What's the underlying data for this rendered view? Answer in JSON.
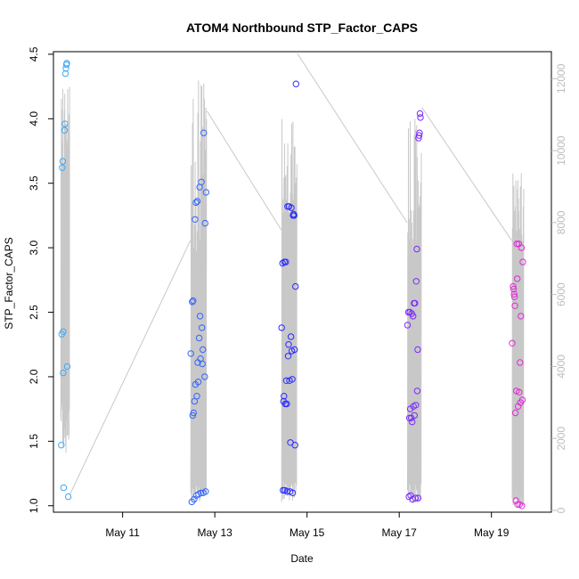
{
  "chart_data": {
    "type": "scatter",
    "title": "ATOM4 Northbound STP_Factor_CAPS",
    "xlabel": "Date",
    "ylabel": "STP_Factor_CAPS",
    "x_ticks": [
      "May 11",
      "May 13",
      "May 15",
      "May 17",
      "May 19"
    ],
    "x_tick_days": [
      11,
      13,
      15,
      17,
      19
    ],
    "xlim_days": [
      9.5,
      20.3
    ],
    "ylim": [
      0.95,
      4.52
    ],
    "y_ticks": [
      1.0,
      1.5,
      2.0,
      2.5,
      3.0,
      3.5,
      4.0,
      4.5
    ],
    "y_tick_labels": [
      "1.0",
      "1.5",
      "2.0",
      "2.5",
      "3.0",
      "3.5",
      "4.0",
      "4.5"
    ],
    "y2lim": [
      -50,
      12750
    ],
    "y2_ticks": [
      0,
      2000,
      4000,
      6000,
      8000,
      10000,
      12000
    ],
    "y2_tick_labels": [
      "0",
      "2000",
      "4000",
      "6000",
      "8000",
      "10000",
      "12000"
    ],
    "colors": {
      "axis": "#000000",
      "secondary_axis": "#bdbdbd",
      "secondary_series": "#c8c8c8",
      "point_colors_by_group": [
        "#3fa9f5",
        "#3366ff",
        "#2b2bff",
        "#7a2bff",
        "#e02bd6"
      ]
    },
    "series": [
      {
        "axis": "left",
        "style": "points",
        "points": [
          {
            "x": 9.67,
            "y": 1.47,
            "g": 0
          },
          {
            "x": 9.68,
            "y": 2.33,
            "g": 0
          },
          {
            "x": 9.69,
            "y": 3.62,
            "g": 0
          },
          {
            "x": 9.7,
            "y": 3.67,
            "g": 0
          },
          {
            "x": 9.71,
            "y": 2.35,
            "g": 0
          },
          {
            "x": 9.71,
            "y": 2.03,
            "g": 0
          },
          {
            "x": 9.72,
            "y": 1.14,
            "g": 0
          },
          {
            "x": 9.74,
            "y": 3.91,
            "g": 0
          },
          {
            "x": 9.75,
            "y": 3.96,
            "g": 0
          },
          {
            "x": 9.76,
            "y": 4.35,
            "g": 0
          },
          {
            "x": 9.77,
            "y": 4.39,
            "g": 0
          },
          {
            "x": 9.78,
            "y": 4.42,
            "g": 0
          },
          {
            "x": 9.79,
            "y": 4.43,
            "g": 0
          },
          {
            "x": 9.8,
            "y": 2.08,
            "g": 0
          },
          {
            "x": 9.82,
            "y": 1.07,
            "g": 0
          },
          {
            "x": 12.48,
            "y": 2.18,
            "g": 1
          },
          {
            "x": 12.5,
            "y": 1.03,
            "g": 1
          },
          {
            "x": 12.51,
            "y": 2.58,
            "g": 1
          },
          {
            "x": 12.52,
            "y": 1.7,
            "g": 1
          },
          {
            "x": 12.53,
            "y": 2.59,
            "g": 1
          },
          {
            "x": 12.54,
            "y": 1.72,
            "g": 1
          },
          {
            "x": 12.55,
            "y": 1.05,
            "g": 1
          },
          {
            "x": 12.56,
            "y": 1.81,
            "g": 1
          },
          {
            "x": 12.57,
            "y": 3.22,
            "g": 1
          },
          {
            "x": 12.58,
            "y": 1.94,
            "g": 1
          },
          {
            "x": 12.59,
            "y": 3.35,
            "g": 1
          },
          {
            "x": 12.6,
            "y": 1.08,
            "g": 1
          },
          {
            "x": 12.61,
            "y": 1.85,
            "g": 1
          },
          {
            "x": 12.62,
            "y": 3.36,
            "g": 1
          },
          {
            "x": 12.63,
            "y": 2.11,
            "g": 1
          },
          {
            "x": 12.64,
            "y": 1.96,
            "g": 1
          },
          {
            "x": 12.65,
            "y": 1.09,
            "g": 1
          },
          {
            "x": 12.66,
            "y": 2.3,
            "g": 1
          },
          {
            "x": 12.67,
            "y": 3.47,
            "g": 1
          },
          {
            "x": 12.68,
            "y": 2.47,
            "g": 1
          },
          {
            "x": 12.69,
            "y": 2.14,
            "g": 1
          },
          {
            "x": 12.7,
            "y": 1.1,
            "g": 1
          },
          {
            "x": 12.71,
            "y": 3.51,
            "g": 1
          },
          {
            "x": 12.72,
            "y": 2.38,
            "g": 1
          },
          {
            "x": 12.73,
            "y": 2.1,
            "g": 1
          },
          {
            "x": 12.74,
            "y": 2.21,
            "g": 1
          },
          {
            "x": 12.75,
            "y": 1.1,
            "g": 1
          },
          {
            "x": 12.76,
            "y": 3.89,
            "g": 1
          },
          {
            "x": 12.78,
            "y": 2.0,
            "g": 1
          },
          {
            "x": 12.79,
            "y": 3.19,
            "g": 1
          },
          {
            "x": 12.8,
            "y": 1.11,
            "g": 1
          },
          {
            "x": 12.81,
            "y": 3.43,
            "g": 1
          },
          {
            "x": 14.45,
            "y": 2.38,
            "g": 2
          },
          {
            "x": 14.47,
            "y": 2.88,
            "g": 2
          },
          {
            "x": 14.48,
            "y": 1.12,
            "g": 2
          },
          {
            "x": 14.49,
            "y": 1.81,
            "g": 2
          },
          {
            "x": 14.5,
            "y": 1.85,
            "g": 2
          },
          {
            "x": 14.51,
            "y": 2.89,
            "g": 2
          },
          {
            "x": 14.52,
            "y": 1.12,
            "g": 2
          },
          {
            "x": 14.53,
            "y": 1.79,
            "g": 2
          },
          {
            "x": 14.54,
            "y": 2.89,
            "g": 2
          },
          {
            "x": 14.55,
            "y": 1.97,
            "g": 2
          },
          {
            "x": 14.56,
            "y": 1.79,
            "g": 2
          },
          {
            "x": 14.57,
            "y": 1.11,
            "g": 2
          },
          {
            "x": 14.58,
            "y": 3.32,
            "g": 2
          },
          {
            "x": 14.59,
            "y": 2.16,
            "g": 2
          },
          {
            "x": 14.6,
            "y": 2.25,
            "g": 2
          },
          {
            "x": 14.61,
            "y": 3.32,
            "g": 2
          },
          {
            "x": 14.62,
            "y": 1.97,
            "g": 2
          },
          {
            "x": 14.63,
            "y": 1.11,
            "g": 2
          },
          {
            "x": 14.64,
            "y": 1.49,
            "g": 2
          },
          {
            "x": 14.65,
            "y": 2.31,
            "g": 2
          },
          {
            "x": 14.66,
            "y": 3.31,
            "g": 2
          },
          {
            "x": 14.67,
            "y": 2.2,
            "g": 2
          },
          {
            "x": 14.68,
            "y": 1.98,
            "g": 2
          },
          {
            "x": 14.69,
            "y": 1.1,
            "g": 2
          },
          {
            "x": 14.7,
            "y": 3.25,
            "g": 2
          },
          {
            "x": 14.71,
            "y": 3.26,
            "g": 2
          },
          {
            "x": 14.72,
            "y": 3.25,
            "g": 2
          },
          {
            "x": 14.73,
            "y": 2.21,
            "g": 2
          },
          {
            "x": 14.74,
            "y": 1.47,
            "g": 2
          },
          {
            "x": 14.75,
            "y": 2.7,
            "g": 2
          },
          {
            "x": 14.76,
            "y": 4.27,
            "g": 2
          },
          {
            "x": 17.18,
            "y": 2.4,
            "g": 3
          },
          {
            "x": 17.2,
            "y": 2.5,
            "g": 3
          },
          {
            "x": 17.21,
            "y": 1.07,
            "g": 3
          },
          {
            "x": 17.22,
            "y": 1.68,
            "g": 3
          },
          {
            "x": 17.23,
            "y": 2.5,
            "g": 3
          },
          {
            "x": 17.24,
            "y": 1.75,
            "g": 3
          },
          {
            "x": 17.25,
            "y": 1.08,
            "g": 3
          },
          {
            "x": 17.26,
            "y": 1.68,
            "g": 3
          },
          {
            "x": 17.27,
            "y": 2.49,
            "g": 3
          },
          {
            "x": 17.28,
            "y": 1.65,
            "g": 3
          },
          {
            "x": 17.29,
            "y": 1.05,
            "g": 3
          },
          {
            "x": 17.3,
            "y": 2.47,
            "g": 3
          },
          {
            "x": 17.31,
            "y": 1.77,
            "g": 3
          },
          {
            "x": 17.32,
            "y": 2.57,
            "g": 3
          },
          {
            "x": 17.33,
            "y": 1.7,
            "g": 3
          },
          {
            "x": 17.34,
            "y": 2.57,
            "g": 3
          },
          {
            "x": 17.35,
            "y": 1.06,
            "g": 3
          },
          {
            "x": 17.36,
            "y": 1.78,
            "g": 3
          },
          {
            "x": 17.37,
            "y": 2.74,
            "g": 3
          },
          {
            "x": 17.38,
            "y": 2.99,
            "g": 3
          },
          {
            "x": 17.39,
            "y": 1.89,
            "g": 3
          },
          {
            "x": 17.4,
            "y": 2.21,
            "g": 3
          },
          {
            "x": 17.41,
            "y": 1.06,
            "g": 3
          },
          {
            "x": 17.42,
            "y": 3.85,
            "g": 3
          },
          {
            "x": 17.43,
            "y": 3.87,
            "g": 3
          },
          {
            "x": 17.44,
            "y": 3.89,
            "g": 3
          },
          {
            "x": 17.45,
            "y": 4.04,
            "g": 3
          },
          {
            "x": 17.46,
            "y": 4.01,
            "g": 3
          },
          {
            "x": 19.45,
            "y": 2.26,
            "g": 4
          },
          {
            "x": 19.47,
            "y": 2.7,
            "g": 4
          },
          {
            "x": 19.48,
            "y": 2.68,
            "g": 4
          },
          {
            "x": 19.49,
            "y": 2.64,
            "g": 4
          },
          {
            "x": 19.5,
            "y": 2.62,
            "g": 4
          },
          {
            "x": 19.51,
            "y": 2.55,
            "g": 4
          },
          {
            "x": 19.52,
            "y": 1.72,
            "g": 4
          },
          {
            "x": 19.53,
            "y": 1.04,
            "g": 4
          },
          {
            "x": 19.54,
            "y": 1.89,
            "g": 4
          },
          {
            "x": 19.55,
            "y": 3.03,
            "g": 4
          },
          {
            "x": 19.56,
            "y": 2.76,
            "g": 4
          },
          {
            "x": 19.57,
            "y": 1.01,
            "g": 4
          },
          {
            "x": 19.58,
            "y": 1.77,
            "g": 4
          },
          {
            "x": 19.59,
            "y": 3.03,
            "g": 4
          },
          {
            "x": 19.6,
            "y": 1.88,
            "g": 4
          },
          {
            "x": 19.61,
            "y": 1.01,
            "g": 4
          },
          {
            "x": 19.62,
            "y": 2.11,
            "g": 4
          },
          {
            "x": 19.63,
            "y": 1.8,
            "g": 4
          },
          {
            "x": 19.64,
            "y": 2.47,
            "g": 4
          },
          {
            "x": 19.65,
            "y": 3.0,
            "g": 4
          },
          {
            "x": 19.66,
            "y": 1.0,
            "g": 4
          },
          {
            "x": 19.67,
            "y": 1.82,
            "g": 4
          },
          {
            "x": 19.68,
            "y": 2.89,
            "g": 4
          }
        ]
      },
      {
        "axis": "right",
        "style": "line",
        "clusters": [
          {
            "start": 9.66,
            "end": 9.85,
            "base_lo": 1500,
            "base_hi": 3700,
            "peak_lo": 8800,
            "peak_hi": 11800
          },
          {
            "start": 12.48,
            "end": 12.82,
            "base_lo": 200,
            "base_hi": 800,
            "peak_lo": 7200,
            "peak_hi": 12300
          },
          {
            "start": 14.45,
            "end": 14.78,
            "base_lo": 200,
            "base_hi": 800,
            "peak_lo": 8200,
            "peak_hi": 10900
          },
          {
            "start": 17.18,
            "end": 17.48,
            "base_lo": 200,
            "base_hi": 800,
            "peak_lo": 7200,
            "peak_hi": 10900
          },
          {
            "start": 19.45,
            "end": 19.7,
            "base_lo": 100,
            "base_hi": 600,
            "peak_lo": 7200,
            "peak_hi": 9700
          }
        ],
        "connectors": [
          {
            "x": [
              9.86,
              12.47
            ],
            "y": [
              450,
              7500
            ]
          },
          {
            "x": [
              12.83,
              14.44
            ],
            "y": [
              11100,
              7800
            ]
          },
          {
            "x": [
              14.79,
              17.17
            ],
            "y": [
              12700,
              8000
            ]
          },
          {
            "x": [
              17.49,
              19.44
            ],
            "y": [
              11200,
              7500
            ]
          }
        ]
      }
    ]
  }
}
